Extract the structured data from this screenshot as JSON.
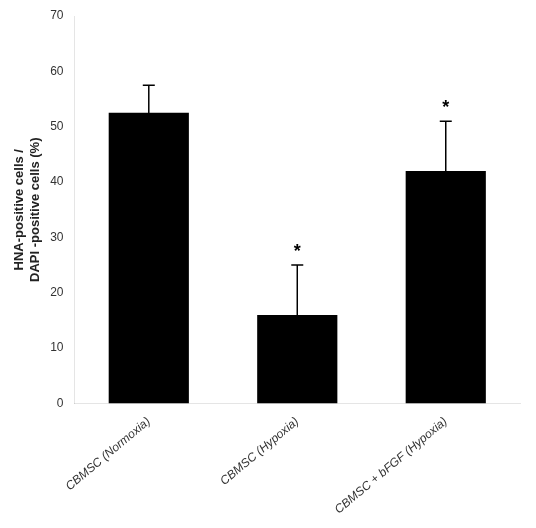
{
  "chart_data": {
    "type": "bar",
    "categories": [
      "CBMSC (Normoxia)",
      "CBMSC (Hypoxia)",
      "CBMSC + bFGF (Hypoxia)"
    ],
    "values": [
      52.5,
      16.0,
      42.0
    ],
    "errors": [
      5.0,
      9.0,
      9.0
    ],
    "color": "#000000",
    "ylabel": [
      "HNA-positive cells /",
      "DAPI -positive cells (%)"
    ],
    "ylim": [
      0,
      70
    ],
    "yticks": [
      0,
      10,
      20,
      30,
      40,
      50,
      60,
      70
    ],
    "annotations": [
      {
        "category": "CBMSC (Hypoxia)",
        "text": "*"
      },
      {
        "category": "CBMSC + bFGF (Hypoxia)",
        "text": "*"
      }
    ],
    "grid": false
  }
}
